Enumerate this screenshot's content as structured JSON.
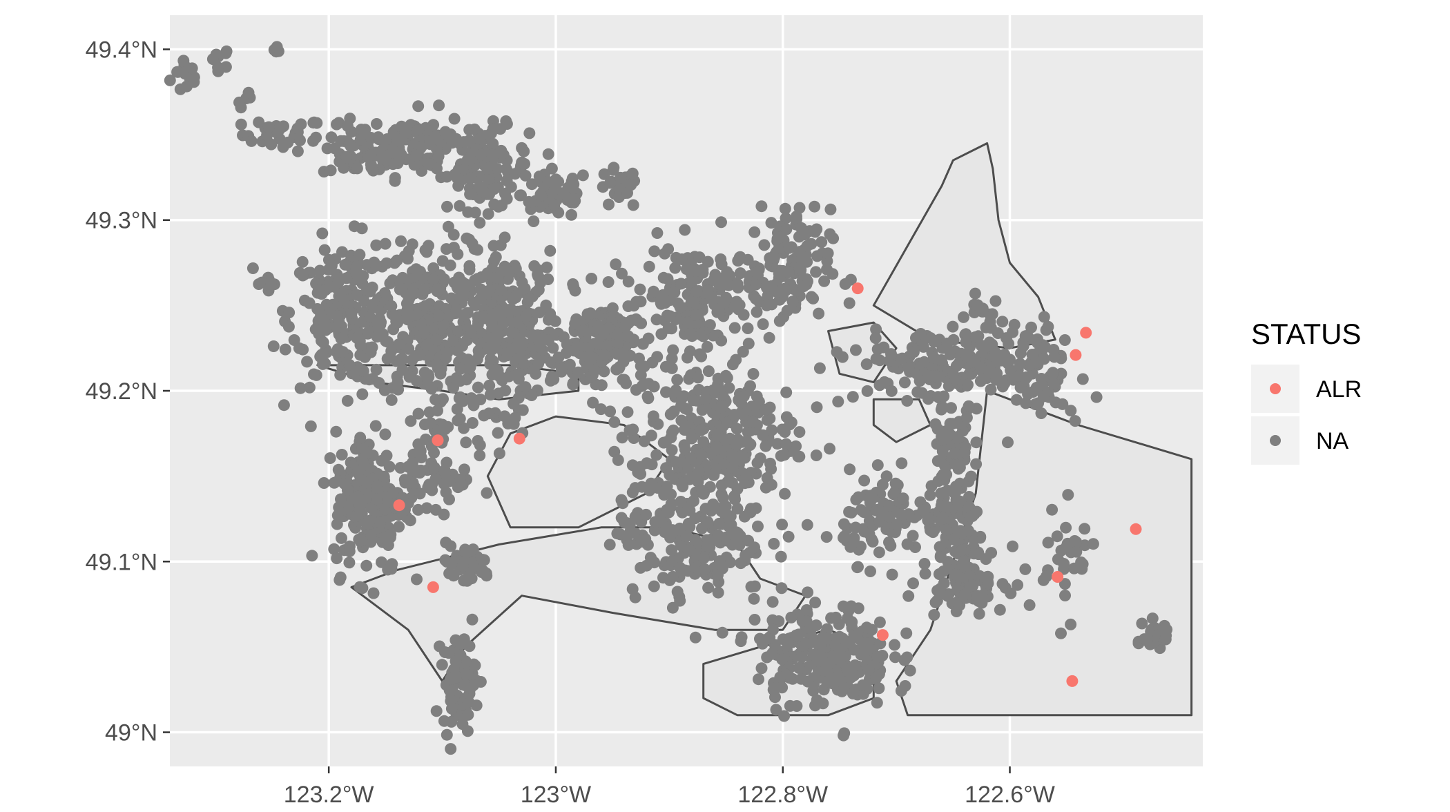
{
  "chart_data": {
    "type": "scatter",
    "title": "",
    "xlabel": "",
    "ylabel": "",
    "xlim": [
      -123.34,
      -122.43
    ],
    "ylim": [
      48.98,
      49.42
    ],
    "x_ticks": [
      {
        "value": -123.2,
        "label": "123.2°W"
      },
      {
        "value": -123.0,
        "label": "123°W"
      },
      {
        "value": -122.8,
        "label": "122.8°W"
      },
      {
        "value": -122.6,
        "label": "122.6°W"
      }
    ],
    "y_ticks": [
      {
        "value": 49.0,
        "label": "49°N"
      },
      {
        "value": 49.1,
        "label": "49.1°N"
      },
      {
        "value": 49.2,
        "label": "49.2°N"
      },
      {
        "value": 49.3,
        "label": "49.3°N"
      },
      {
        "value": 49.4,
        "label": "49.4°N"
      }
    ],
    "grid": true,
    "legend": {
      "title": "STATUS",
      "position": "right"
    },
    "colors": {
      "panel": "#ebebeb",
      "grid": "#ffffff",
      "region_fill": "#e6e6e6",
      "region_stroke": "#4d4d4d",
      "tick": "#333333"
    },
    "series": [
      {
        "name": "ALR",
        "color": "#f8766d",
        "points": [
          [
            -122.734,
            49.26
          ],
          [
            -122.542,
            49.221
          ],
          [
            -122.533,
            49.234
          ],
          [
            -123.104,
            49.171
          ],
          [
            -123.032,
            49.172
          ],
          [
            -123.138,
            49.133
          ],
          [
            -123.108,
            49.085
          ],
          [
            -122.489,
            49.119
          ],
          [
            -122.558,
            49.091
          ],
          [
            -122.712,
            49.057
          ],
          [
            -122.545,
            49.03
          ]
        ]
      },
      {
        "name": "NA",
        "color": "#7f7f7f",
        "clusters": [
          {
            "lon": -123.325,
            "lat": 49.385,
            "n": 14,
            "spread": [
              0.012,
              0.01
            ]
          },
          {
            "lon": -123.296,
            "lat": 49.395,
            "n": 8,
            "spread": [
              0.008,
              0.005
            ]
          },
          {
            "lon": -123.245,
            "lat": 49.399,
            "n": 4,
            "spread": [
              0.003,
              0.002
            ]
          },
          {
            "lon": -123.273,
            "lat": 49.37,
            "n": 6,
            "spread": [
              0.006,
              0.005
            ]
          },
          {
            "lon": -123.24,
            "lat": 49.35,
            "n": 30,
            "spread": [
              0.03,
              0.008
            ]
          },
          {
            "lon": -123.17,
            "lat": 49.34,
            "n": 70,
            "spread": [
              0.03,
              0.013
            ]
          },
          {
            "lon": -123.12,
            "lat": 49.345,
            "n": 90,
            "spread": [
              0.035,
              0.016
            ]
          },
          {
            "lon": -123.06,
            "lat": 49.33,
            "n": 110,
            "spread": [
              0.03,
              0.02
            ]
          },
          {
            "lon": -123.0,
            "lat": 49.315,
            "n": 60,
            "spread": [
              0.025,
              0.012
            ]
          },
          {
            "lon": -122.945,
            "lat": 49.318,
            "n": 25,
            "spread": [
              0.015,
              0.01
            ]
          },
          {
            "lon": -123.185,
            "lat": 49.245,
            "n": 220,
            "spread": [
              0.04,
              0.035
            ]
          },
          {
            "lon": -123.11,
            "lat": 49.24,
            "n": 280,
            "spread": [
              0.04,
              0.04
            ]
          },
          {
            "lon": -123.04,
            "lat": 49.235,
            "n": 260,
            "spread": [
              0.035,
              0.038
            ]
          },
          {
            "lon": -122.96,
            "lat": 49.225,
            "n": 160,
            "spread": [
              0.035,
              0.025
            ]
          },
          {
            "lon": -122.875,
            "lat": 49.255,
            "n": 150,
            "spread": [
              0.04,
              0.025
            ]
          },
          {
            "lon": -122.8,
            "lat": 49.27,
            "n": 130,
            "spread": [
              0.035,
              0.03
            ]
          },
          {
            "lon": -123.255,
            "lat": 49.263,
            "n": 8,
            "spread": [
              0.008,
              0.008
            ]
          },
          {
            "lon": -123.165,
            "lat": 49.135,
            "n": 180,
            "spread": [
              0.025,
              0.035
            ]
          },
          {
            "lon": -123.11,
            "lat": 49.15,
            "n": 60,
            "spread": [
              0.03,
              0.02
            ]
          },
          {
            "lon": -123.1,
            "lat": 49.18,
            "n": 30,
            "spread": [
              0.02,
              0.01
            ]
          },
          {
            "lon": -123.08,
            "lat": 49.098,
            "n": 40,
            "spread": [
              0.02,
              0.01
            ]
          },
          {
            "lon": -123.085,
            "lat": 49.03,
            "n": 80,
            "spread": [
              0.012,
              0.022
            ]
          },
          {
            "lon": -122.86,
            "lat": 49.175,
            "n": 260,
            "spread": [
              0.06,
              0.035
            ]
          },
          {
            "lon": -122.88,
            "lat": 49.12,
            "n": 220,
            "spread": [
              0.055,
              0.035
            ]
          },
          {
            "lon": -122.765,
            "lat": 49.045,
            "n": 240,
            "spread": [
              0.05,
              0.025
            ]
          },
          {
            "lon": -122.71,
            "lat": 49.125,
            "n": 90,
            "spread": [
              0.03,
              0.02
            ]
          },
          {
            "lon": -122.65,
            "lat": 49.12,
            "n": 90,
            "spread": [
              0.025,
              0.02
            ]
          },
          {
            "lon": -122.65,
            "lat": 49.165,
            "n": 60,
            "spread": [
              0.015,
              0.02
            ]
          },
          {
            "lon": -122.64,
            "lat": 49.09,
            "n": 90,
            "spread": [
              0.03,
              0.015
            ]
          },
          {
            "lon": -122.65,
            "lat": 49.215,
            "n": 200,
            "spread": [
              0.07,
              0.018
            ]
          },
          {
            "lon": -122.575,
            "lat": 49.21,
            "n": 60,
            "spread": [
              0.02,
              0.025
            ]
          },
          {
            "lon": -122.47,
            "lat": 49.057,
            "n": 40,
            "spread": [
              0.01,
              0.007
            ]
          },
          {
            "lon": -122.55,
            "lat": 49.1,
            "n": 30,
            "spread": [
              0.02,
              0.025
            ]
          },
          {
            "lon": -122.63,
            "lat": 49.248,
            "n": 10,
            "spread": [
              0.015,
              0.01
            ]
          }
        ]
      }
    ]
  }
}
